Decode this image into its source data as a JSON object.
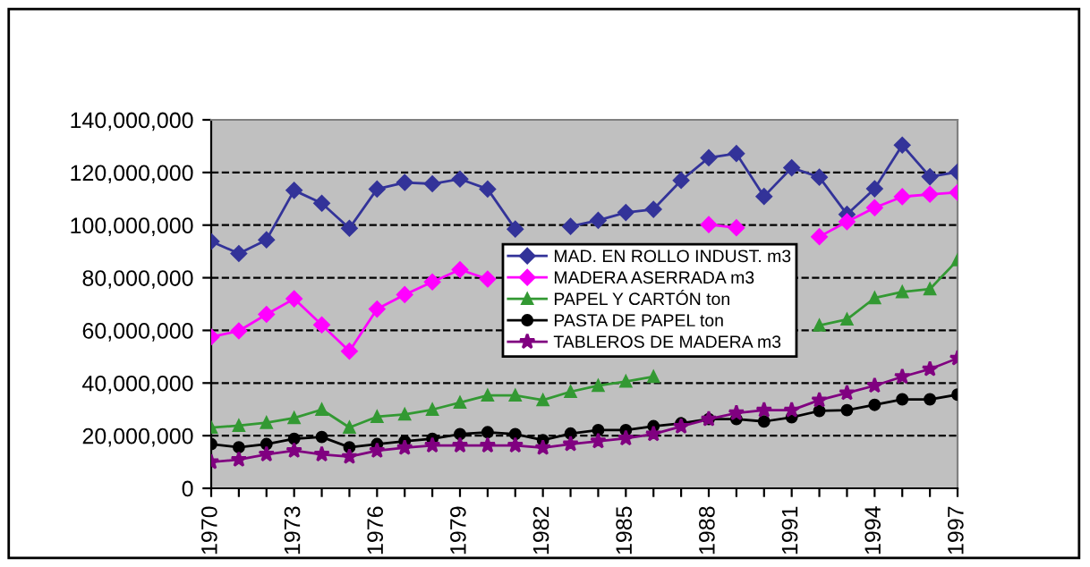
{
  "chart_data": {
    "type": "line",
    "categories": [
      "1970",
      null,
      null,
      "1973",
      null,
      null,
      "1976",
      null,
      null,
      "1979",
      null,
      null,
      "1982",
      null,
      null,
      "1985",
      null,
      null,
      "1988",
      null,
      null,
      "1991",
      null,
      null,
      "1994",
      null,
      null,
      "1997"
    ],
    "series": [
      {
        "name": "MAD. EN ROLLO INDUST. m3",
        "color": "#333399",
        "marker": "diamond",
        "values": [
          93800000,
          89200000,
          94400000,
          113200000,
          108300000,
          98800000,
          113700000,
          116200000,
          115700000,
          117500000,
          113700000,
          98500000,
          null,
          99500000,
          101800000,
          104800000,
          106000000,
          117000000,
          125600000,
          127200000,
          110900000,
          121800000,
          118200000,
          104100000,
          113800000,
          130400000,
          118400000,
          120200000
        ]
      },
      {
        "name": "MADERA ASERRADA m3",
        "color": "#ff00ff",
        "marker": "diamond",
        "values": [
          57500000,
          59800000,
          66100000,
          72000000,
          62100000,
          52100000,
          68100000,
          73600000,
          78400000,
          83100000,
          79500000,
          null,
          null,
          null,
          null,
          null,
          null,
          null,
          100200000,
          99000000,
          null,
          null,
          95600000,
          101300000,
          106600000,
          110800000,
          111700000,
          112400000
        ]
      },
      {
        "name": "PAPEL Y CARTÓN ton",
        "color": "#339933",
        "marker": "triangle",
        "values": [
          23100000,
          23800000,
          24900000,
          26700000,
          29900000,
          23100000,
          27200000,
          28100000,
          29900000,
          32600000,
          35300000,
          35300000,
          33500000,
          36700000,
          39000000,
          40600000,
          42400000,
          null,
          null,
          null,
          null,
          null,
          61900000,
          64200000,
          72300000,
          74600000,
          75700000,
          86700000
        ]
      },
      {
        "name": "PASTA DE PAPEL ton",
        "color": "#000000",
        "marker": "circle",
        "values": [
          16800000,
          15600000,
          16800000,
          18800000,
          19500000,
          15600000,
          16800000,
          17900000,
          18800000,
          20600000,
          21300000,
          20600000,
          18300000,
          20800000,
          22100000,
          22100000,
          23600000,
          24700000,
          26300000,
          26300000,
          25400000,
          27000000,
          29400000,
          29700000,
          31700000,
          33800000,
          33800000,
          35600000
        ]
      },
      {
        "name": "TABLEROS DE MADERA m3",
        "color": "#800080",
        "marker": "star",
        "values": [
          10000000,
          10900000,
          12900000,
          14300000,
          12900000,
          12000000,
          14300000,
          15400000,
          16300000,
          16300000,
          16300000,
          16300000,
          15400000,
          16800000,
          17900000,
          19000000,
          20600000,
          23500000,
          26300000,
          28600000,
          29700000,
          29700000,
          33500000,
          36200000,
          39000000,
          42400000,
          45300000,
          49400000
        ]
      }
    ],
    "ylim": [
      0,
      140000000
    ],
    "yticks": [
      0,
      {
        "value": 20000000,
        "label": "20,000,000"
      },
      {
        "value": 40000000,
        "label": "40,000,000"
      },
      {
        "value": 60000000,
        "label": "60,000,000"
      },
      {
        "value": 80000000,
        "label": "80,000,000"
      },
      {
        "value": 100000000,
        "label": "100,000,000"
      },
      {
        "value": 120000000,
        "label": "120,000,000"
      },
      {
        "value": 140000000,
        "label": "140,000,000"
      }
    ],
    "grid": "y",
    "legend": "center",
    "line_style": "solid"
  }
}
